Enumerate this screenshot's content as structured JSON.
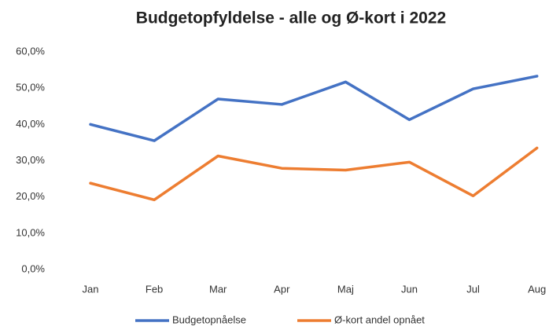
{
  "chart_data": {
    "type": "line",
    "title": "Budgetopfyldelse - alle og Ø-kort i 2022",
    "categories": [
      "Jan",
      "Feb",
      "Mar",
      "Apr",
      "Maj",
      "Jun",
      "Jul",
      "Aug"
    ],
    "series": [
      {
        "name": "Budgetopnåelse",
        "color": "#4472c4",
        "values": [
          40.0,
          35.5,
          47.0,
          45.5,
          51.7,
          41.3,
          49.8,
          53.3
        ]
      },
      {
        "name": "Ø-kort andel opnået",
        "color": "#ed7d31",
        "values": [
          23.8,
          19.2,
          31.3,
          27.9,
          27.4,
          29.6,
          20.3,
          33.5
        ]
      }
    ],
    "ylim": [
      0,
      60
    ],
    "yticks": [
      {
        "value": 0,
        "label": "0,0%"
      },
      {
        "value": 10,
        "label": "10,0%"
      },
      {
        "value": 20,
        "label": "20,0%"
      },
      {
        "value": 30,
        "label": "30,0%"
      },
      {
        "value": 40,
        "label": "40,0%"
      },
      {
        "value": 50,
        "label": "50,0%"
      },
      {
        "value": 60,
        "label": "60,0%"
      }
    ],
    "grid": false
  }
}
